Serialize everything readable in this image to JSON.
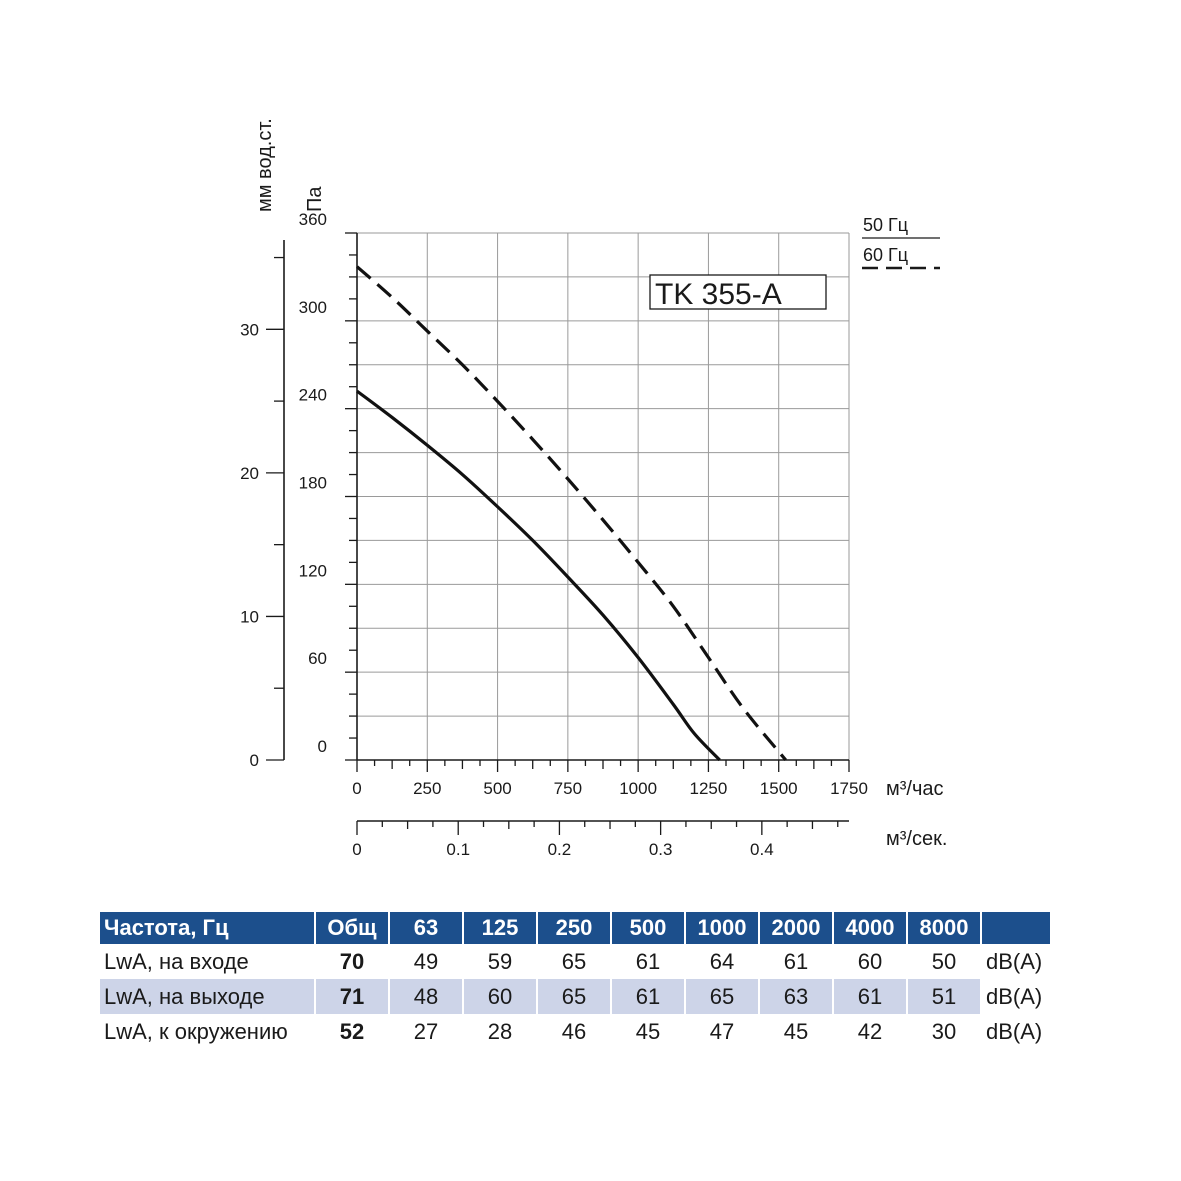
{
  "chart_data": {
    "type": "line",
    "title": "TK 355-A",
    "ylabel_pa": "Па",
    "ylabel_mm": "мм вод.ст.",
    "xlabel_m3h": "м³/час",
    "xlabel_m3s": "м³/сек.",
    "x_ticks_m3h": [
      "0",
      "250",
      "500",
      "750",
      "1000",
      "1250",
      "1500",
      "1750"
    ],
    "x_ticks_m3s": [
      "0",
      "0.1",
      "0.2",
      "0.3",
      "0.4"
    ],
    "y_ticks_pa": [
      "0",
      "60",
      "120",
      "180",
      "240",
      "300",
      "360"
    ],
    "y_ticks_mm": [
      "0",
      "10",
      "20",
      "30"
    ],
    "xlim": [
      0,
      1750
    ],
    "ylim": [
      0,
      360
    ],
    "legend": [
      "50 Гц",
      "60 Гц"
    ],
    "series": [
      {
        "name": "50 Гц",
        "style": "solid",
        "x": [
          0,
          125,
          250,
          375,
          500,
          625,
          750,
          875,
          1000,
          1125,
          1200,
          1290
        ],
        "y": [
          252,
          234,
          215,
          195,
          173,
          150,
          125,
          99,
          70,
          38,
          18,
          0
        ]
      },
      {
        "name": "60 Гц",
        "style": "dashed",
        "x": [
          0,
          125,
          250,
          375,
          500,
          625,
          750,
          875,
          1000,
          1125,
          1250,
          1375,
          1525
        ],
        "y": [
          337,
          316,
          293,
          270,
          245,
          219,
          192,
          164,
          135,
          105,
          70,
          35,
          0
        ]
      }
    ]
  },
  "sound_table": {
    "headers": [
      "Частота, Гц",
      "Общ",
      "63",
      "125",
      "250",
      "500",
      "1000",
      "2000",
      "4000",
      "8000"
    ],
    "rows": [
      {
        "label": "LwA, на входе",
        "total": "70",
        "values": [
          "49",
          "59",
          "65",
          "61",
          "64",
          "61",
          "60",
          "50"
        ],
        "unit": "dB(A)"
      },
      {
        "label": "LwA, на выходе",
        "total": "71",
        "values": [
          "48",
          "60",
          "65",
          "61",
          "65",
          "63",
          "61",
          "51"
        ],
        "unit": "dB(A)"
      },
      {
        "label": "LwA, к окружению",
        "total": "52",
        "values": [
          "27",
          "28",
          "46",
          "45",
          "47",
          "45",
          "42",
          "30"
        ],
        "unit": "dB(A)"
      }
    ],
    "colors": {
      "header_bg": "#1c4f8c",
      "row_shade": "#cdd4e8"
    }
  }
}
